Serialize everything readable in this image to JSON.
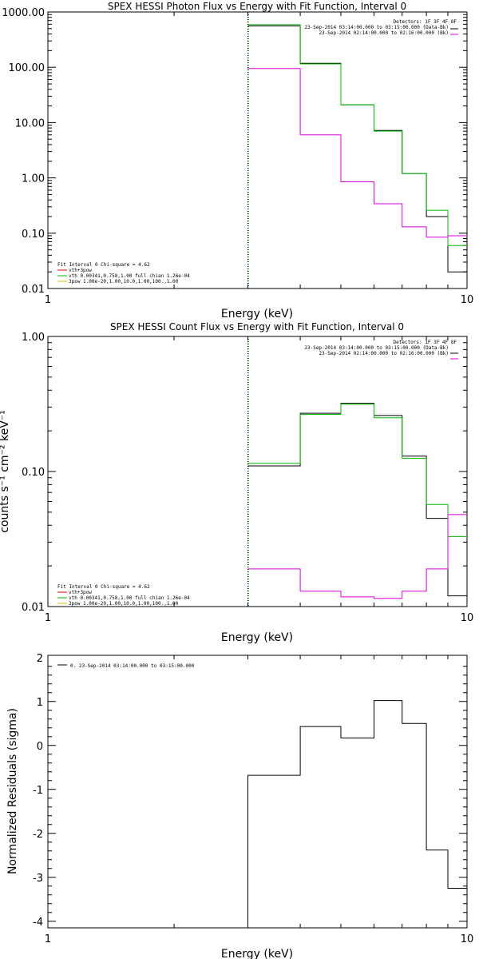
{
  "chart_data": [
    {
      "type": "line",
      "title": "SPEX HESSI Photon Flux vs Energy with Fit Function, Interval 0",
      "xlabel": "Energy (keV)",
      "ylabel": "",
      "xscale": "log",
      "yscale": "log",
      "xlim": [
        1,
        10
      ],
      "ylim": [
        0.01,
        1000
      ],
      "xticks": [
        "1",
        "10"
      ],
      "yticks": [
        "1000.00",
        "100.00",
        "10.00",
        "1.00",
        "0.10",
        "0.01"
      ],
      "xlines": [
        {
          "x": 3,
          "color": "#000000",
          "style": "dotted"
        },
        {
          "x": 3,
          "color": "#00bb00",
          "style": "dotted"
        }
      ],
      "legend_top": {
        "header": "Detectors: 1F 3F 4F 8F",
        "entries": [
          {
            "text": "23-Sep-2014 03:14:00.000 to 03:15:00.000 (Data-Bk)",
            "color": "#000000"
          },
          {
            "text": "23-Sep-2014 02:14:00.000 to 02:16:00.000 (Bk)",
            "color": "#dd00dd"
          }
        ]
      },
      "legend_bottom": {
        "header": "Fit Interval 0   Chi-square = 4.62",
        "entries": [
          {
            "text": "vth+3pow",
            "color": "#dd0000"
          },
          {
            "text": "vth 0.00341,0.758,1.00  full chian 1.26e-04",
            "color": "#00bb00"
          },
          {
            "text": "3pow 1.00e-20,1.00,10.0,1.00,100.,1.00",
            "color": "#ddbb00"
          }
        ]
      },
      "edges": [
        3,
        4,
        5,
        6,
        7,
        8,
        9,
        10
      ],
      "series": [
        {
          "color": "#000000",
          "values": [
            560,
            118,
            21,
            7.2,
            1.2,
            0.2,
            0.02
          ]
        },
        {
          "color": "#00bb00",
          "values": [
            590,
            115,
            21,
            7.0,
            1.2,
            0.26,
            0.06
          ]
        },
        {
          "color": "#dd00dd",
          "values": [
            95,
            6.0,
            0.85,
            0.34,
            0.13,
            0.085,
            0.09
          ]
        }
      ]
    },
    {
      "type": "line",
      "title": "SPEX HESSI Count Flux vs Energy with Fit Function, Interval 0",
      "xlabel": "Energy (keV)",
      "ylabel": "counts s⁻¹ cm⁻² keV⁻¹",
      "xscale": "log",
      "yscale": "log",
      "xlim": [
        1,
        10
      ],
      "ylim": [
        0.01,
        1.0
      ],
      "xticks": [
        "1",
        "10"
      ],
      "yticks": [
        "1.00",
        "0.10",
        "0.01"
      ],
      "xlines": [
        {
          "x": 3,
          "color": "#000000",
          "style": "dotted"
        },
        {
          "x": 3,
          "color": "#00bb00",
          "style": "dotted"
        }
      ],
      "legend_top": {
        "header": "Detectors: 1F 3F 4F 8F",
        "entries": [
          {
            "text": "23-Sep-2014 03:14:00.000 to 03:15:00.000 (Data-Bk)",
            "color": "#000000"
          },
          {
            "text": "23-Sep-2014 02:14:00.000 to 02:16:00.000 (Bk)",
            "color": "#dd00dd"
          }
        ]
      },
      "legend_bottom": {
        "header": "Fit Interval 0   Chi-square = 4.62",
        "entries": [
          {
            "text": "vth+3pow",
            "color": "#dd0000"
          },
          {
            "text": "vth 0.00341,0.758,1.00  full chian 1.26e-04",
            "color": "#00bb00"
          },
          {
            "text": "3pow 1.00e-20,1.00,10.0,1.00,100.,1.00",
            "color": "#ddbb00"
          }
        ]
      },
      "edges": [
        3,
        4,
        5,
        6,
        7,
        8,
        9,
        10
      ],
      "series": [
        {
          "color": "#000000",
          "values": [
            0.11,
            0.27,
            0.32,
            0.26,
            0.13,
            0.045,
            0.012
          ]
        },
        {
          "color": "#00bb00",
          "values": [
            0.115,
            0.265,
            0.315,
            0.25,
            0.125,
            0.057,
            0.033
          ]
        },
        {
          "color": "#dd00dd",
          "values": [
            0.019,
            0.013,
            0.0118,
            0.0115,
            0.013,
            0.019,
            0.048
          ]
        }
      ]
    },
    {
      "type": "line",
      "title": "",
      "xlabel": "Energy (keV)",
      "ylabel": "Normalized Residuals (sigma)",
      "xscale": "log",
      "yscale": "linear",
      "xlim": [
        1,
        10
      ],
      "ylim": [
        -4.15,
        2.05
      ],
      "xticks": [
        "1",
        "10"
      ],
      "yticks": [
        "2",
        "1",
        "0",
        "-1",
        "-2",
        "-3",
        "-4"
      ],
      "legend_top": {
        "header": "",
        "entries": [
          {
            "text": "0. 23-Sep-2014 03:14:00.000 to 03:15:00.000",
            "color": "#000000"
          }
        ]
      },
      "edges": [
        3,
        4,
        5,
        6,
        7,
        8,
        9,
        10
      ],
      "series": [
        {
          "color": "#000000",
          "values": [
            -0.68,
            0.43,
            0.17,
            1.02,
            0.5,
            -2.38,
            -3.25
          ],
          "drop_to_bottom": true
        }
      ]
    }
  ]
}
